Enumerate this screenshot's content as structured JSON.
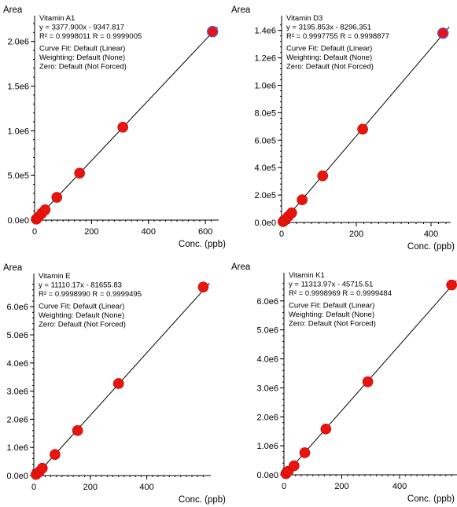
{
  "chart_data": [
    {
      "type": "scatter",
      "title": "Vitamin A1",
      "equation": "y = 3377.900x - 9347.817",
      "r2_label": "R² = 0.9998011",
      "r_label": "R = 0.9999005",
      "curve_fit": "Curve Fit: Default (Linear)",
      "weighting": "Weighting: Default (None)",
      "zero": "Zero: Default (Not Forced)",
      "xlabel": "Conc. (ppb)",
      "ylabel": "Area",
      "xlim": [
        0,
        630
      ],
      "ylim": [
        0,
        2200000
      ],
      "xticks": [
        0,
        200,
        400,
        600
      ],
      "yticks": [
        0,
        500000,
        1000000,
        1500000,
        2000000
      ],
      "ytick_labels": [
        "0.0e0",
        "5.0e5",
        "1.0e6",
        "1.5e6",
        "2.0e6"
      ],
      "slope": 3377.9,
      "intercept": -9347.817,
      "x": [
        6,
        12,
        25,
        37,
        78,
        158,
        310,
        625
      ],
      "y": [
        10000,
        30000,
        75000,
        115000,
        255000,
        525000,
        1040000,
        2110000
      ],
      "highlight_last": true
    },
    {
      "type": "scatter",
      "title": "Vitamin D3",
      "equation": "y = 3195.853x - 8296.351",
      "r2_label": "R² = 0.9997755",
      "r_label": "R = 0.9998877",
      "curve_fit": "Curve Fit: Default (Linear)",
      "weighting": "Weighting: Default (None)",
      "zero": "Zero: Default (Not Forced)",
      "xlabel": "Conc. (ppb)",
      "ylabel": "Area",
      "xlim": [
        0,
        440
      ],
      "ylim": [
        0,
        1450000
      ],
      "xticks": [
        0,
        200,
        400
      ],
      "yticks": [
        0,
        200000,
        400000,
        600000,
        800000,
        1000000,
        1200000,
        1400000
      ],
      "ytick_labels": [
        "0.0e0",
        "2.0e5",
        "4.0e5",
        "6.0e5",
        "8.0e5",
        "1.0e6",
        "1.2e6",
        "1.4e6"
      ],
      "slope": 3195.853,
      "intercept": -8296.351,
      "x": [
        4,
        9,
        18,
        27,
        55,
        110,
        217,
        432
      ],
      "y": [
        6000,
        18000,
        45000,
        70000,
        165000,
        340000,
        680000,
        1380000
      ],
      "highlight_last": true
    },
    {
      "type": "scatter",
      "title": "Vitamin E",
      "equation": "y = 11110.17x - 81655.83",
      "r2_label": "R² = 0.9998990",
      "r_label": "R = 0.9999495",
      "curve_fit": "Curve Fit: Default (Linear)",
      "weighting": "Weighting: Default (None)",
      "zero": "Zero: Default (Not Forced)",
      "xlabel": "Conc. (ppb)",
      "ylabel": "Area",
      "xlim": [
        0,
        610
      ],
      "ylim": [
        0,
        6900000
      ],
      "xticks": [
        0,
        200,
        400
      ],
      "yticks": [
        0,
        1000000,
        2000000,
        3000000,
        4000000,
        5000000,
        6000000
      ],
      "ytick_labels": [
        "0.0e0",
        "1.0e6",
        "2.0e6",
        "3.0e6",
        "4.0e6",
        "5.0e6",
        "6.0e6"
      ],
      "slope": 11110.17,
      "intercept": -81655.83,
      "x": [
        8,
        19,
        30,
        75,
        155,
        300,
        600
      ],
      "y": [
        40000,
        130000,
        260000,
        750000,
        1600000,
        3270000,
        6700000
      ],
      "highlight_last": false
    },
    {
      "type": "scatter",
      "title": "Vitamin K1",
      "equation": "y = 11313.97x - 45715.51",
      "r2_label": "R² = 0.9998969",
      "r_label": "R = 0.9999484",
      "curve_fit": "Curve Fit: Default (Linear)",
      "weighting": "Weighting: Default (None)",
      "zero": "Zero: Default (Not Forced)",
      "xlabel": "Conc. (ppb)",
      "ylabel": "Area",
      "xlim": [
        0,
        585
      ],
      "ylim": [
        0,
        6700000
      ],
      "xticks": [
        0,
        200,
        400
      ],
      "yticks": [
        0,
        1000000,
        2000000,
        3000000,
        4000000,
        5000000,
        6000000
      ],
      "ytick_labels": [
        "0.0e0",
        "1.0e6",
        "2.0e6",
        "3.0e6",
        "4.0e6",
        "5.0e6",
        "6.0e6"
      ],
      "slope": 11313.97,
      "intercept": -45715.51,
      "x": [
        7,
        15,
        35,
        72,
        145,
        290,
        580
      ],
      "y": [
        40000,
        120000,
        310000,
        760000,
        1580000,
        3210000,
        6550000
      ],
      "highlight_last": false
    }
  ]
}
